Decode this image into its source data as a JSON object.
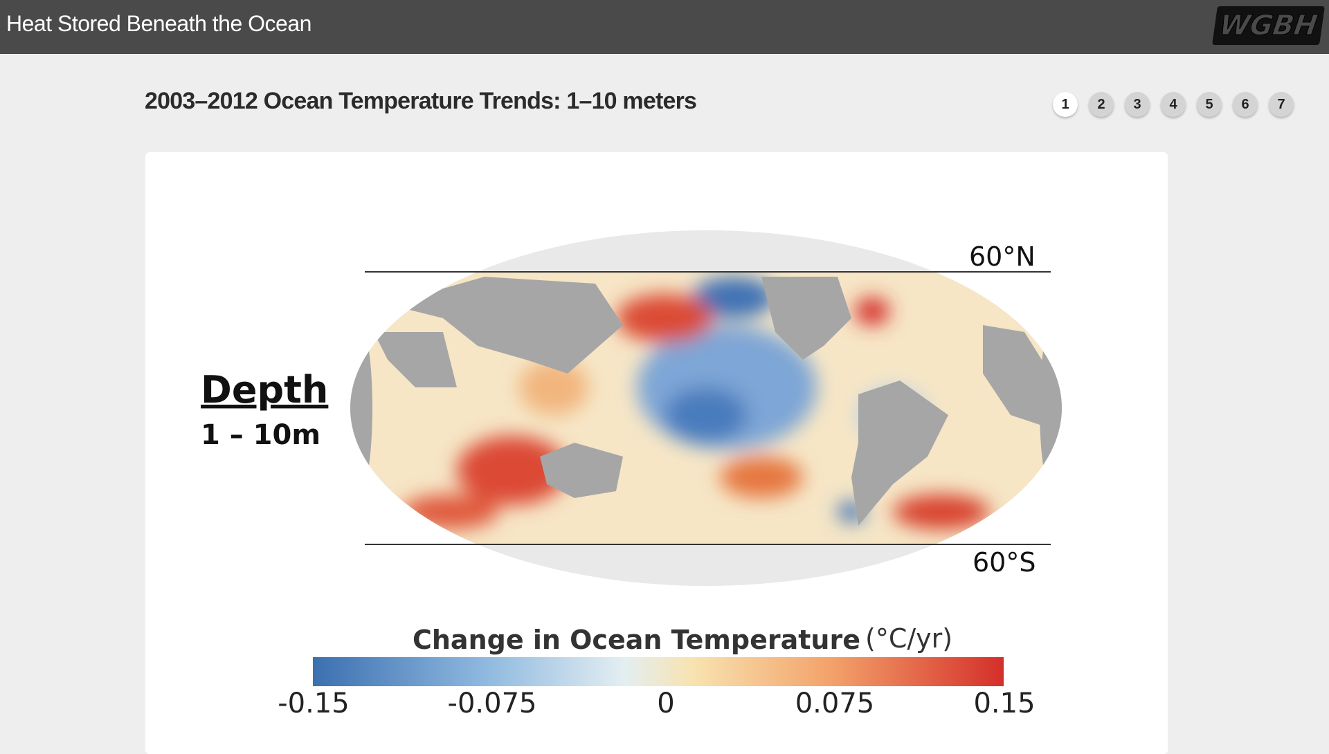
{
  "header": {
    "title": "Heat Stored Beneath the Ocean",
    "logo": "WGBH"
  },
  "heading": "2003–2012 Ocean Temperature Trends: 1–10 meters",
  "pages": [
    "1",
    "2",
    "3",
    "4",
    "5",
    "6",
    "7"
  ],
  "map": {
    "north_label": "60°N",
    "south_label": "60°S",
    "depth_title": "Depth",
    "depth_range": "1 – 10m"
  },
  "legend": {
    "title": "Change in Ocean Temperature",
    "unit": "(°C/yr)",
    "ticks": [
      "-0.15",
      "-0.075",
      "0",
      "0.075",
      "0.15"
    ]
  }
}
